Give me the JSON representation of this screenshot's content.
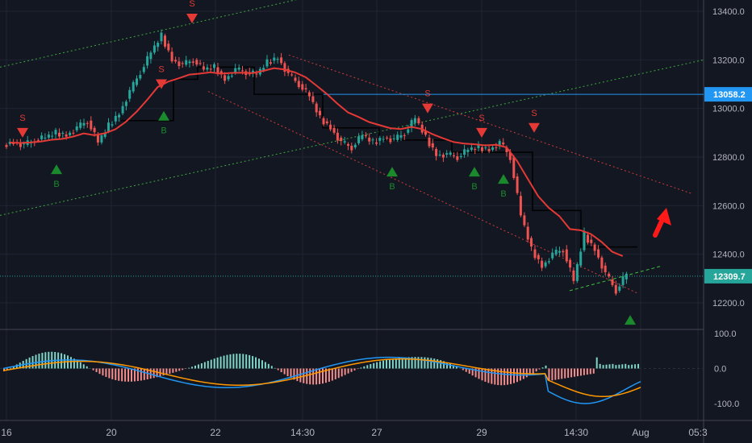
{
  "chart_data": [
    {
      "type": "candlestick",
      "title": "",
      "y_ticks": [
        12200.0,
        12400.0,
        12600.0,
        12800.0,
        13000.0,
        13200.0,
        13400.0
      ],
      "y_tick_labels": [
        "12200.0",
        "12400.0",
        "12600.0",
        "12800.0",
        "13000.0",
        "13200.0",
        "13400.0"
      ],
      "ylim": [
        12080,
        13450
      ],
      "x_tick_labels": [
        "16",
        "20",
        "22",
        "14:30",
        "27",
        "29",
        "14:30",
        "Aug",
        "05:3"
      ],
      "price_labels": [
        {
          "text": "13058.2",
          "value": 13058.2,
          "color": "#2196f3"
        },
        {
          "text": "12309.7",
          "value": 12309.7,
          "color": "#26a69a"
        }
      ],
      "series": [
        {
          "kind": "close_approx",
          "values": [
            12860,
            12850,
            12870,
            12880,
            12900,
            12890,
            12920,
            12950,
            12860,
            12930,
            12980,
            13070,
            13150,
            13230,
            13300,
            13200,
            13180,
            13200,
            13160,
            13170,
            13120,
            13160,
            13150,
            13140,
            13190,
            13210,
            13140,
            13100,
            13050,
            12960,
            12920,
            12860,
            12840,
            12890,
            12860,
            12880,
            12870,
            12900,
            12960,
            12880,
            12810,
            12810,
            12800,
            12830,
            12840,
            12830,
            12860,
            12800,
            12560,
            12420,
            12350,
            12400,
            12420,
            12290,
            12480,
            12420,
            12320,
            12250,
            12320
          ]
        },
        {
          "kind": "moving_average",
          "color": "#e53935"
        }
      ],
      "signals": [
        {
          "label": "S",
          "type": "sell"
        },
        {
          "label": "B",
          "type": "buy"
        },
        {
          "label": "S",
          "type": "sell"
        },
        {
          "label": "B",
          "type": "buy"
        },
        {
          "label": "S",
          "type": "sell"
        },
        {
          "label": "B",
          "type": "buy"
        },
        {
          "label": "S",
          "type": "sell"
        },
        {
          "label": "B",
          "type": "buy"
        },
        {
          "label": "S",
          "type": "sell"
        },
        {
          "label": "B",
          "type": "buy"
        },
        {
          "label": "S",
          "type": "sell"
        },
        {
          "label": "",
          "type": "buy"
        }
      ]
    },
    {
      "type": "macd",
      "y_ticks": [
        100.0,
        0.0,
        -100.0
      ],
      "y_tick_labels": [
        "100.0",
        "0.0",
        "-100.0"
      ],
      "ylim": [
        -140,
        105
      ],
      "series": [
        {
          "name": "",
          "color": "#2196f3"
        },
        {
          "name": "",
          "color": "#ff9800"
        }
      ]
    }
  ],
  "colors": {
    "background": "#131722",
    "up": "#26a69a",
    "down": "#ef5350",
    "ma": "#e53935",
    "sell": "#e53935",
    "buy": "#1b8a2c",
    "channel_green": "#3fa93f",
    "channel_red": "#d03a3a",
    "arrow": "#ff1a1a",
    "level": "#2196f3",
    "axis_text": "#b2b5be"
  },
  "icons": [
    "sell-triangle-icon",
    "buy-triangle-icon",
    "up-arrow-icon"
  ]
}
